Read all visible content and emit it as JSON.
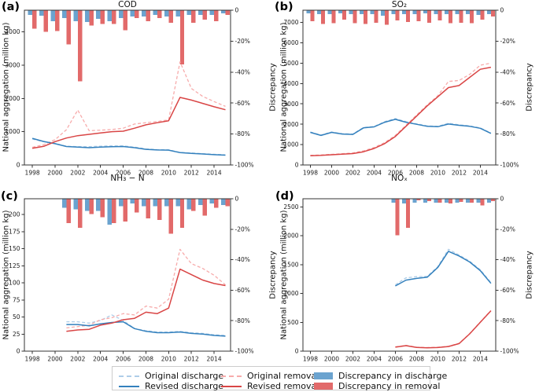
{
  "figure": {
    "ylabel_left": "National aggregation (million kg)",
    "ylabel_right": "Discrepancy"
  },
  "legend": {
    "items": [
      {
        "label": "Original discharge",
        "style": "dashed",
        "color_key": "original_discharge"
      },
      {
        "label": "Revised discharge",
        "style": "solid",
        "color_key": "revised_discharge"
      },
      {
        "label": "Original removal",
        "style": "dashed",
        "color_key": "original_removal"
      },
      {
        "label": "Revised removal",
        "style": "solid",
        "color_key": "revised_removal"
      },
      {
        "label": "Discrepancy in discharge",
        "style": "patch",
        "color_key": "discrepancy_in_discharge"
      },
      {
        "label": "Discrepancy in removal",
        "style": "patch",
        "color_key": "discrepancy_in_removal"
      }
    ]
  },
  "colors": {
    "original_discharge": "#aecde8",
    "revised_discharge": "#3380bd",
    "original_removal": "#f7abab",
    "revised_removal": "#d94545",
    "discrepancy_in_discharge": "#6ba3cf",
    "discrepancy_in_removal": "#e26a6a",
    "spine": "#333333",
    "tick_text": "#1a1a1a"
  },
  "chart_data": [
    {
      "id": "a",
      "panel": "(a)",
      "title": "COD",
      "type": "line+bar",
      "xlim": [
        1997.3,
        2015.45
      ],
      "ylim_left": [
        0,
        4650
      ],
      "ylim_right": [
        0,
        -100
      ],
      "xticks": [
        1998,
        2000,
        2002,
        2004,
        2006,
        2008,
        2010,
        2012,
        2014
      ],
      "yticks_left": [
        0,
        1000,
        2000,
        3000,
        4000
      ],
      "yticks_right": {
        "values": [
          0,
          -20,
          -40,
          -60,
          -80,
          -100
        ],
        "labels": [
          "0",
          "-20%",
          "-40%",
          "-60%",
          "-80%",
          "-100%"
        ]
      },
      "years": [
        1998,
        1999,
        2000,
        2001,
        2002,
        2003,
        2004,
        2005,
        2006,
        2007,
        2008,
        2009,
        2010,
        2011,
        2012,
        2013,
        2014,
        2015
      ],
      "series": {
        "original_discharge": [
          780,
          700,
          645,
          565,
          550,
          550,
          565,
          575,
          575,
          535,
          485,
          460,
          455,
          380,
          360,
          340,
          320,
          305
        ],
        "revised_discharge": [
          800,
          705,
          640,
          555,
          535,
          520,
          535,
          550,
          555,
          520,
          470,
          450,
          445,
          370,
          350,
          330,
          310,
          295
        ],
        "original_removal": [
          530,
          610,
          760,
          1060,
          1650,
          1030,
          1045,
          1065,
          1105,
          1230,
          1270,
          1305,
          1355,
          3100,
          2300,
          2060,
          1905,
          1760
        ],
        "revised_removal": [
          500,
          560,
          700,
          810,
          880,
          920,
          960,
          1000,
          1015,
          1105,
          1205,
          1270,
          1330,
          2030,
          1950,
          1850,
          1750,
          1660
        ]
      },
      "bars": {
        "discrepancy_in_discharge": [
          -3,
          -3.5,
          -7,
          -5,
          -7,
          -7.5,
          -5.5,
          -7,
          -5,
          -4,
          -4,
          -3,
          -4,
          -4,
          -3,
          -3,
          -3,
          -2
        ],
        "discrepancy_in_removal": [
          -12,
          -14,
          -13.5,
          -22,
          -46,
          -10,
          -9,
          -9,
          -13,
          -5,
          -7,
          -5,
          -8,
          -35,
          -8,
          -6,
          -7,
          -3
        ]
      }
    },
    {
      "id": "b",
      "panel": "(b)",
      "title": "SO₂",
      "type": "line+bar",
      "xlim": [
        1997.3,
        2015.45
      ],
      "ylim_left": [
        0,
        7600
      ],
      "ylim_right": [
        0,
        -100
      ],
      "xticks": [
        1998,
        2000,
        2002,
        2004,
        2006,
        2008,
        2010,
        2012,
        2014
      ],
      "yticks_left": [
        0,
        1000,
        2000,
        3000,
        4000,
        5000,
        6000,
        7000
      ],
      "yticks_right": {
        "values": [
          0,
          -20,
          -40,
          -60,
          -80,
          -100
        ],
        "labels": [
          "0",
          "-20%",
          "-40%",
          "-60%",
          "-80%",
          "-100%"
        ]
      },
      "years": [
        1998,
        1999,
        2000,
        2001,
        2002,
        2003,
        2004,
        2005,
        2006,
        2007,
        2008,
        2009,
        2010,
        2011,
        2012,
        2013,
        2014,
        2015
      ],
      "series": {
        "original_discharge": [
          1620,
          1470,
          1620,
          1540,
          1520,
          1840,
          1890,
          2130,
          2280,
          2130,
          2020,
          1920,
          1900,
          2050,
          1970,
          1920,
          1820,
          1570
        ],
        "revised_discharge": [
          1600,
          1450,
          1600,
          1520,
          1500,
          1820,
          1870,
          2100,
          2240,
          2100,
          2000,
          1900,
          1880,
          2010,
          1950,
          1900,
          1800,
          1550
        ],
        "original_removal": [
          470,
          490,
          520,
          555,
          590,
          690,
          855,
          1100,
          1450,
          1950,
          2450,
          2950,
          3400,
          4100,
          4150,
          4450,
          4900,
          5000
        ],
        "revised_removal": [
          450,
          470,
          500,
          530,
          560,
          650,
          810,
          1050,
          1400,
          1900,
          2400,
          2900,
          3350,
          3800,
          3900,
          4300,
          4700,
          4800
        ]
      },
      "bars": {
        "discrepancy_in_discharge": [
          -2,
          -2.5,
          -2.5,
          -2,
          -2.5,
          -2.5,
          -2.5,
          -3.5,
          -2.5,
          -2.5,
          -2.5,
          -2,
          -2.5,
          -2.5,
          -2.5,
          -2.5,
          -3,
          -2.5
        ],
        "discrepancy_in_removal": [
          -7,
          -9,
          -8.5,
          -6,
          -8.5,
          -9,
          -8,
          -9.5,
          -6.5,
          -7.5,
          -7,
          -8,
          -6.5,
          -8.5,
          -8,
          -8.5,
          -6,
          -4
        ]
      }
    },
    {
      "id": "c",
      "panel": "(c)",
      "title": "NH₃ − N",
      "type": "line+bar",
      "xlim": [
        1997.3,
        2015.45
      ],
      "ylim_left": [
        0,
        223
      ],
      "ylim_right": [
        0,
        -100
      ],
      "xticks": [
        1998,
        2000,
        2002,
        2004,
        2006,
        2008,
        2010,
        2012,
        2014
      ],
      "yticks_left": [
        0,
        25,
        50,
        75,
        100,
        125,
        150,
        175,
        200
      ],
      "yticks_right": {
        "values": [
          0,
          -20,
          -40,
          -60,
          -80,
          -100
        ],
        "labels": [
          "0",
          "-20%",
          "-40%",
          "-60%",
          "-80%",
          "-100%"
        ]
      },
      "years": [
        2001,
        2002,
        2003,
        2004,
        2005,
        2006,
        2007,
        2008,
        2009,
        2010,
        2011,
        2012,
        2013,
        2014,
        2015
      ],
      "series": {
        "original_discharge": [
          43,
          43,
          41,
          45,
          53,
          45,
          33,
          30,
          28,
          28,
          29,
          27,
          26,
          24,
          23
        ],
        "revised_discharge": [
          39,
          39,
          37,
          40,
          42,
          43,
          33,
          29,
          27,
          27,
          28,
          26,
          25,
          23,
          22
        ],
        "original_removal": [
          34,
          36,
          38,
          46,
          49,
          55,
          53,
          66,
          63,
          76,
          149,
          128,
          121,
          111,
          97
        ],
        "revised_removal": [
          29,
          31,
          32,
          38,
          41,
          46,
          48,
          57,
          55,
          63,
          120,
          112,
          104,
          99,
          96
        ]
      },
      "bars": {
        "discrepancy_in_discharge": [
          -6,
          -7,
          -8,
          -8,
          -17,
          -5,
          -3,
          -5,
          -5,
          -5,
          -5,
          -7,
          -4,
          -3,
          -4
        ],
        "discrepancy_in_removal": [
          -16,
          -19,
          -10,
          -12,
          -16,
          -15,
          -9,
          -13,
          -14,
          -23,
          -19,
          -8,
          -11,
          -6,
          -5
        ]
      }
    },
    {
      "id": "d",
      "panel": "(d)",
      "title": "NOₓ",
      "type": "line+bar",
      "xlim": [
        1997.3,
        2015.45
      ],
      "ylim_left": [
        0,
        2640
      ],
      "ylim_right": [
        0,
        -100
      ],
      "xticks": [
        1998,
        2000,
        2002,
        2004,
        2006,
        2008,
        2010,
        2012,
        2014
      ],
      "yticks_left": [
        0,
        500,
        1000,
        1500,
        2000,
        2500
      ],
      "yticks_right": {
        "values": [
          0,
          -20,
          -40,
          -60,
          -80,
          -100
        ],
        "labels": [
          "0",
          "-20%",
          "-40%",
          "-60%",
          "-80%",
          "-100%"
        ]
      },
      "years": [
        2006,
        2007,
        2008,
        2009,
        2010,
        2011,
        2012,
        2013,
        2014,
        2015
      ],
      "series": {
        "original_discharge": [
          1150,
          1270,
          1290,
          1295,
          1465,
          1765,
          1665,
          1560,
          1410,
          1190
        ],
        "revised_discharge": [
          1130,
          1230,
          1260,
          1280,
          1450,
          1730,
          1650,
          1545,
          1395,
          1175
        ],
        "original_removal": [
          75,
          100,
          70,
          62,
          68,
          85,
          135,
          305,
          505,
          705
        ],
        "revised_removal": [
          70,
          95,
          65,
          58,
          63,
          80,
          130,
          300,
          500,
          700
        ]
      },
      "bars": {
        "discrepancy_in_discharge": [
          -2.5,
          -3,
          -2.5,
          -2.5,
          -2.5,
          -2.5,
          -2.5,
          -2.5,
          -2.5,
          -2.5
        ],
        "discrepancy_in_removal": [
          -24,
          -19,
          -1,
          -1.5,
          -2.5,
          -3,
          -2,
          -2.5,
          -4.5,
          -1.5
        ]
      }
    }
  ]
}
